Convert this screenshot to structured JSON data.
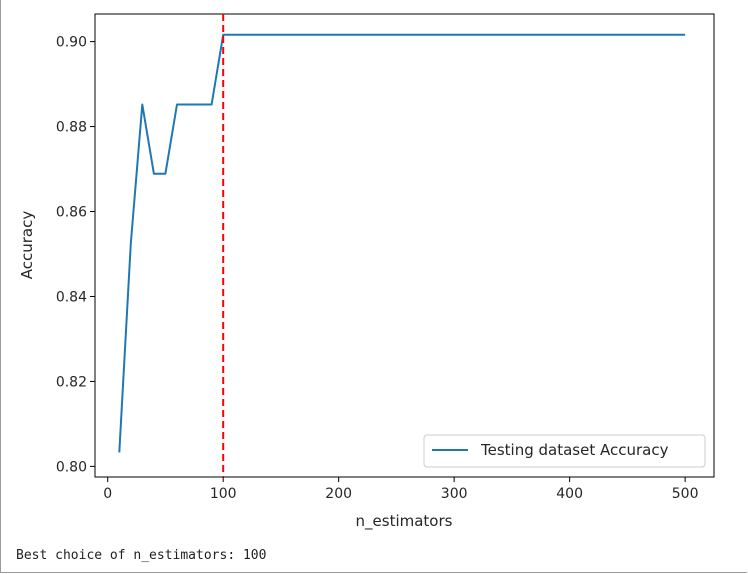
{
  "chart_data": {
    "type": "line",
    "xlabel": "n_estimators",
    "ylabel": "Accuracy",
    "xlim": [
      -11,
      525
    ],
    "ylim": [
      0.7975,
      0.9065
    ],
    "xticks": [
      0,
      100,
      200,
      300,
      400,
      500
    ],
    "yticks": [
      0.8,
      0.82,
      0.84,
      0.86,
      0.88,
      0.9
    ],
    "series": [
      {
        "name": "Testing dataset Accuracy",
        "color": "#1f77b4",
        "x": [
          10,
          20,
          30,
          40,
          50,
          60,
          70,
          80,
          90,
          100,
          200,
          300,
          400,
          500
        ],
        "y": [
          0.8033,
          0.8525,
          0.8852,
          0.8689,
          0.8689,
          0.8852,
          0.8852,
          0.8852,
          0.8852,
          0.9016,
          0.9016,
          0.9016,
          0.9016,
          0.9016
        ]
      }
    ],
    "vline": {
      "x": 100,
      "color": "#ff0000",
      "style": "dashed"
    },
    "legend": {
      "placement": "lower-right"
    },
    "grid": false
  },
  "output": {
    "text": "Best choice of n_estimators: 100"
  }
}
